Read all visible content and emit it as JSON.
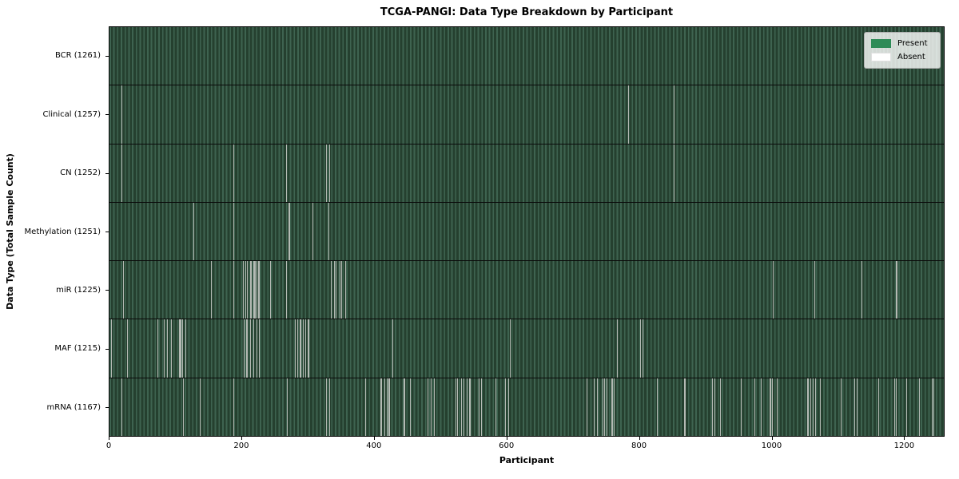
{
  "figure": {
    "title": "TCGA-PANGI: Data Type Breakdown by Participant",
    "xlabel": "Participant",
    "ylabel": "Data Type (Total Sample Count)"
  },
  "legend": {
    "items": [
      {
        "label": "Present",
        "color": "#2e8b57"
      },
      {
        "label": "Absent",
        "color": "#ffffff"
      }
    ]
  },
  "chart_data": {
    "type": "heatmap",
    "title": "TCGA-PANGI: Data Type Breakdown by Participant",
    "xlabel": "Participant",
    "ylabel": "Data Type (Total Sample Count)",
    "legend_position": "upper right",
    "grid": false,
    "n_participants": 1261,
    "x_ticks": [
      0,
      200,
      400,
      600,
      800,
      1000,
      1200
    ],
    "colors": {
      "present": "#2e8b57",
      "absent": "#ffffff",
      "absent_rendered": "#b4bab4",
      "cell_stripe_light": "#3e6350",
      "cell_stripe_dark": "#25402f",
      "row_divider": "#0a0a0a"
    },
    "rows": [
      {
        "label": "BCR (1261)",
        "name": "BCR",
        "total": 1261,
        "absent_count": 0,
        "absent_segments": []
      },
      {
        "label": "Clinical (1257)",
        "name": "Clinical",
        "total": 1257,
        "absent_count": 4,
        "absent_segments": [
          [
            18,
            2
          ],
          [
            784,
            1
          ],
          [
            853,
            1
          ]
        ]
      },
      {
        "label": "CN (1252)",
        "name": "CN",
        "total": 1252,
        "absent_count": 9,
        "absent_segments": [
          [
            18,
            2
          ],
          [
            187,
            1
          ],
          [
            267,
            1
          ],
          [
            327,
            2
          ],
          [
            332,
            2
          ],
          [
            853,
            1
          ]
        ]
      },
      {
        "label": "Methylation (1251)",
        "name": "Methylation",
        "total": 1251,
        "absent_count": 10,
        "absent_segments": [
          [
            127,
            2
          ],
          [
            187,
            2
          ],
          [
            271,
            2
          ],
          [
            307,
            2
          ],
          [
            331,
            2
          ]
        ]
      },
      {
        "label": "miR (1225)",
        "name": "miR",
        "total": 1225,
        "absent_count": 36,
        "absent_segments": [
          [
            20,
            1
          ],
          [
            154,
            1
          ],
          [
            187,
            1
          ],
          [
            202,
            2
          ],
          [
            205,
            2
          ],
          [
            208,
            2
          ],
          [
            213,
            2
          ],
          [
            218,
            3
          ],
          [
            222,
            2
          ],
          [
            225,
            2
          ],
          [
            243,
            1
          ],
          [
            267,
            1
          ],
          [
            334,
            2
          ],
          [
            339,
            2
          ],
          [
            342,
            2
          ],
          [
            348,
            2
          ],
          [
            350,
            2
          ],
          [
            356,
            1
          ],
          [
            1002,
            1
          ],
          [
            1065,
            1
          ],
          [
            1136,
            1
          ],
          [
            1188,
            1
          ],
          [
            1190,
            1
          ]
        ]
      },
      {
        "label": "MAF (1215)",
        "name": "MAF",
        "total": 1215,
        "absent_count": 46,
        "absent_segments": [
          [
            3,
            1
          ],
          [
            26,
            1
          ],
          [
            72,
            2
          ],
          [
            82,
            2
          ],
          [
            87,
            2
          ],
          [
            93,
            2
          ],
          [
            105,
            4
          ],
          [
            110,
            2
          ],
          [
            115,
            1
          ],
          [
            203,
            2
          ],
          [
            207,
            2
          ],
          [
            212,
            2
          ],
          [
            217,
            2
          ],
          [
            222,
            2
          ],
          [
            226,
            1
          ],
          [
            280,
            2
          ],
          [
            284,
            2
          ],
          [
            288,
            2
          ],
          [
            292,
            2
          ],
          [
            296,
            2
          ],
          [
            300,
            2
          ],
          [
            428,
            1
          ],
          [
            605,
            1
          ],
          [
            767,
            1
          ],
          [
            802,
            2
          ],
          [
            806,
            1
          ]
        ]
      },
      {
        "label": "mRNA (1167)",
        "name": "mRNA",
        "total": 1167,
        "absent_count": 94,
        "absent_segments": [
          [
            18,
            1
          ],
          [
            111,
            1
          ],
          [
            136,
            1
          ],
          [
            187,
            1
          ],
          [
            268,
            1
          ],
          [
            327,
            2
          ],
          [
            332,
            2
          ],
          [
            386,
            2
          ],
          [
            410,
            2
          ],
          [
            415,
            1
          ],
          [
            419,
            1
          ],
          [
            422,
            2
          ],
          [
            445,
            2
          ],
          [
            454,
            1
          ],
          [
            481,
            2
          ],
          [
            486,
            1
          ],
          [
            490,
            2
          ],
          [
            523,
            2
          ],
          [
            526,
            1
          ],
          [
            531,
            2
          ],
          [
            535,
            1
          ],
          [
            540,
            2
          ],
          [
            544,
            2
          ],
          [
            558,
            2
          ],
          [
            562,
            1
          ],
          [
            583,
            2
          ],
          [
            598,
            2
          ],
          [
            603,
            1
          ],
          [
            721,
            2
          ],
          [
            732,
            2
          ],
          [
            737,
            1
          ],
          [
            745,
            2
          ],
          [
            748,
            1
          ],
          [
            751,
            2
          ],
          [
            759,
            2
          ],
          [
            762,
            1
          ],
          [
            827,
            1
          ],
          [
            869,
            2
          ],
          [
            911,
            2
          ],
          [
            914,
            1
          ],
          [
            923,
            1
          ],
          [
            954,
            1
          ],
          [
            975,
            2
          ],
          [
            985,
            1
          ],
          [
            998,
            2
          ],
          [
            1001,
            1
          ],
          [
            1008,
            1
          ],
          [
            1055,
            2
          ],
          [
            1059,
            1
          ],
          [
            1063,
            2
          ],
          [
            1066,
            1
          ],
          [
            1074,
            2
          ],
          [
            1105,
            1
          ],
          [
            1126,
            2
          ],
          [
            1129,
            1
          ],
          [
            1162,
            2
          ],
          [
            1186,
            2
          ],
          [
            1188,
            1
          ],
          [
            1204,
            2
          ],
          [
            1224,
            1
          ],
          [
            1243,
            2
          ],
          [
            1245,
            1
          ]
        ]
      }
    ]
  }
}
